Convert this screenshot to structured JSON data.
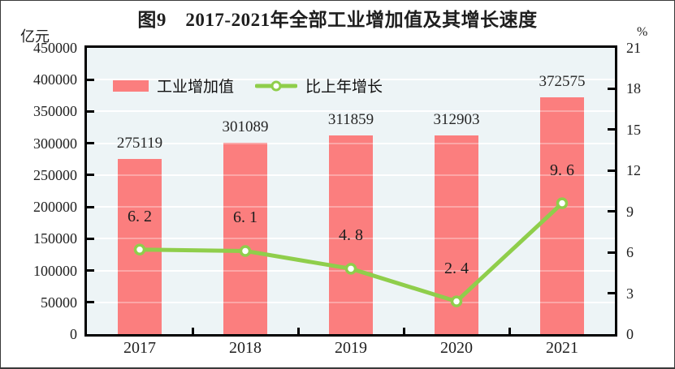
{
  "title": "图9　2017-2021年全部工业增加值及其增长速度",
  "chart_data": {
    "type": "bar+line",
    "title": "图9　2017-2021年全部工业增加值及其增长速度",
    "categories": [
      "2017",
      "2018",
      "2019",
      "2020",
      "2021"
    ],
    "series": [
      {
        "name": "工业增加值",
        "type": "bar",
        "y_axis": "left",
        "values": [
          275119,
          301089,
          311859,
          312903,
          372575
        ],
        "data_labels": [
          "275119",
          "301089",
          "311859",
          "312903",
          "372575"
        ],
        "color": "#fb7e7e"
      },
      {
        "name": "比上年增长",
        "type": "line",
        "y_axis": "right",
        "values": [
          6.2,
          6.1,
          4.8,
          2.4,
          9.6
        ],
        "data_labels": [
          "6. 2",
          "6. 1",
          "4. 8",
          "2. 4",
          "9. 6"
        ],
        "color": "#8fce4b",
        "marker": "open-circle-white"
      }
    ],
    "left_axis": {
      "title": "亿元",
      "min": 0,
      "max": 450000,
      "step": 50000,
      "tick_labels": [
        "0",
        "50000",
        "100000",
        "150000",
        "200000",
        "250000",
        "300000",
        "350000",
        "400000",
        "450000"
      ]
    },
    "right_axis": {
      "title": "%",
      "min": 0,
      "max": 21,
      "step": 3,
      "tick_labels": [
        "0",
        "3",
        "6",
        "9",
        "12",
        "15",
        "18",
        "21"
      ]
    },
    "grid": "horizontal-white",
    "legend_position": "top-left-inside",
    "plot_bg": "#edf4f6"
  }
}
